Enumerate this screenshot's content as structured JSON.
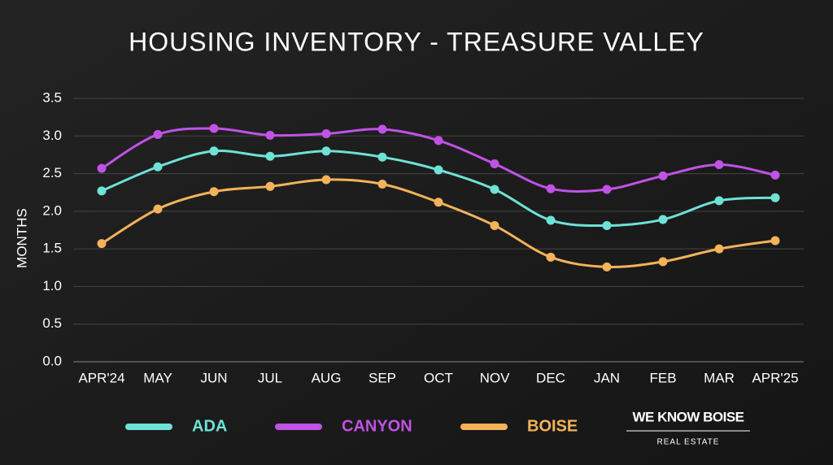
{
  "chart_data": {
    "type": "line",
    "title": "HOUSING INVENTORY - TREASURE VALLEY",
    "y_label": "MONTHS",
    "categories": [
      "APR'24",
      "MAY",
      "JUN",
      "JUL",
      "AUG",
      "SEP",
      "OCT",
      "NOV",
      "DEC",
      "JAN",
      "FEB",
      "MAR",
      "APR'25"
    ],
    "series": [
      {
        "name": "ADA",
        "color": "#6ee2d6",
        "values": [
          2.27,
          2.59,
          2.8,
          2.73,
          2.8,
          2.72,
          2.55,
          2.29,
          1.88,
          1.81,
          1.89,
          2.14,
          2.18
        ]
      },
      {
        "name": "CANYON",
        "color": "#c052e6",
        "values": [
          2.57,
          3.02,
          3.1,
          3.01,
          3.03,
          3.09,
          2.94,
          2.63,
          2.3,
          2.29,
          2.47,
          2.62,
          2.48
        ]
      },
      {
        "name": "BOISE",
        "color": "#f4b25a",
        "values": [
          1.57,
          2.03,
          2.26,
          2.33,
          2.42,
          2.36,
          2.12,
          1.81,
          1.39,
          1.26,
          1.33,
          1.5,
          1.61
        ]
      }
    ],
    "ylim": [
      0,
      3.5
    ],
    "yticks": [
      {
        "value": 0,
        "label": "0.0"
      },
      0.5,
      {
        "value": 1,
        "label": "1.0"
      },
      1.5,
      {
        "value": 2,
        "label": "2.0"
      },
      2.5,
      {
        "value": 3,
        "label": "3.0"
      },
      3.5
    ],
    "grid": true,
    "smooth": true,
    "legend": "bottom"
  },
  "branding": {
    "name": "WE KNOW BOISE",
    "tagline": "REAL ESTATE"
  }
}
